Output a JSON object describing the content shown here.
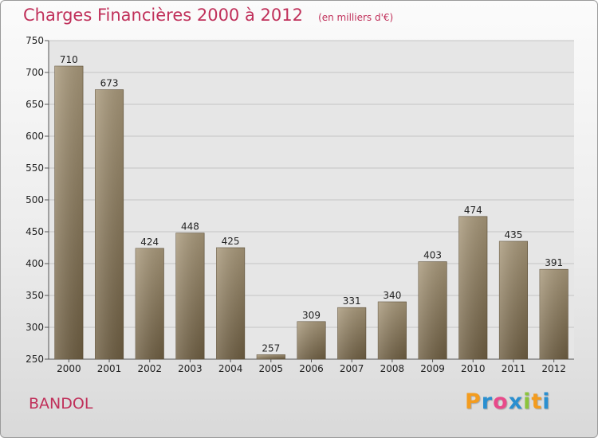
{
  "chart_data": {
    "type": "bar",
    "title": "Charges Financières 2000 à 2012",
    "unit_note": "(en milliers d'€)",
    "xlabel": "",
    "ylabel": "",
    "categories": [
      "2000",
      "2001",
      "2002",
      "2003",
      "2004",
      "2005",
      "2006",
      "2007",
      "2008",
      "2009",
      "2010",
      "2011",
      "2012"
    ],
    "values": [
      710,
      673,
      424,
      448,
      425,
      257,
      309,
      331,
      340,
      403,
      474,
      435,
      391
    ],
    "ylim": [
      250,
      750
    ],
    "yticks": [
      250,
      300,
      350,
      400,
      450,
      500,
      550,
      600,
      650,
      700,
      750
    ],
    "grid": true,
    "legend": "none",
    "bar_color": "#8c7a5c"
  },
  "footer": {
    "city": "BANDOL",
    "logo_letters": [
      "P",
      "r",
      "o",
      "x",
      "i",
      "t",
      "i"
    ],
    "logo_colors": [
      "#f39c1f",
      "#2a8fd0",
      "#e84a8a",
      "#2a8fd0",
      "#8cc43c",
      "#f39c1f",
      "#2a8fd0"
    ]
  }
}
